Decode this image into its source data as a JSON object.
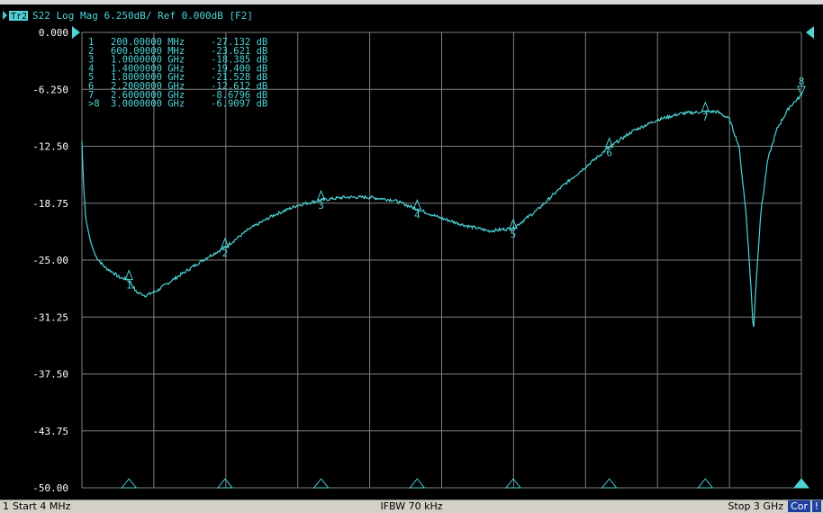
{
  "header": {
    "trace_id": "Tr2",
    "title_rest": "S22 Log Mag 6.250dB/ Ref 0.000dB [F2]"
  },
  "status": {
    "channel": "1",
    "start": "Start 4 MHz",
    "ifbw": "IFBW 70 kHz",
    "stop": "Stop 3 GHz",
    "cor": "Cor",
    "warn": "!"
  },
  "colors": {
    "trace": "#4fd3d6",
    "grid": "#808080",
    "background": "#000000",
    "marker_text": "#4fd3d6",
    "header_badge": "#4fd3d6"
  },
  "marker_table": [
    {
      "idx": "1",
      "freq": "200.00000 MHz",
      "val": "-27.132 dB"
    },
    {
      "idx": "2",
      "freq": "600.00000 MHz",
      "val": "-23.621 dB"
    },
    {
      "idx": "3",
      "freq": "1.0000000 GHz",
      "val": "-18.385 dB"
    },
    {
      "idx": "4",
      "freq": "1.4000000 GHz",
      "val": "-19.400 dB"
    },
    {
      "idx": "5",
      "freq": "1.8000000 GHz",
      "val": "-21.528 dB"
    },
    {
      "idx": "6",
      "freq": "2.2000000 GHz",
      "val": "-12.612 dB"
    },
    {
      "idx": "7",
      "freq": "2.6000000 GHz",
      "val": "-8.6796 dB"
    },
    {
      "idx": ">8",
      "freq": "3.0000000 GHz",
      "val": "-6.9097 dB"
    }
  ],
  "chart_data": {
    "type": "line",
    "title": "S22 Log Mag 6.250dB/ Ref 0.000dB [F2]",
    "xlabel": "",
    "ylabel": "",
    "xlim": [
      4,
      3000
    ],
    "x_unit": "MHz",
    "ylim": [
      -50,
      0
    ],
    "y_ticks": [
      "0.000",
      "-6.250",
      "-12.50",
      "-18.75",
      "-25.00",
      "-31.25",
      "-37.50",
      "-43.75",
      "-50.00"
    ],
    "grid": true,
    "series": [
      {
        "x": [
          4,
          10,
          20,
          40,
          60,
          80,
          100,
          130,
          160,
          190,
          200,
          230,
          270,
          320,
          380,
          450,
          520,
          600,
          700,
          800,
          900,
          1000,
          1100,
          1200,
          1300,
          1400,
          1500,
          1600,
          1700,
          1800,
          1900,
          2000,
          2100,
          2200,
          2300,
          2400,
          2500,
          2600,
          2650,
          2700,
          2740,
          2770,
          2790,
          2800,
          2810,
          2830,
          2860,
          2900,
          2950,
          3000
        ],
        "y": [
          -12.0,
          -16.5,
          -20.5,
          -23.0,
          -24.5,
          -25.2,
          -25.8,
          -26.3,
          -26.9,
          -27.1,
          -27.13,
          -28.5,
          -28.9,
          -28.3,
          -27.2,
          -26.0,
          -24.8,
          -23.6,
          -21.6,
          -20.1,
          -19.0,
          -18.4,
          -18.1,
          -18.1,
          -18.4,
          -19.4,
          -20.4,
          -21.2,
          -21.8,
          -21.5,
          -19.5,
          -17.0,
          -14.8,
          -12.6,
          -10.8,
          -9.6,
          -8.9,
          -8.7,
          -8.7,
          -9.5,
          -12.5,
          -20.0,
          -28.0,
          -33.0,
          -28.0,
          -20.0,
          -14.0,
          -10.5,
          -8.2,
          -6.9
        ]
      }
    ],
    "markers": [
      {
        "label": "1",
        "x": 200,
        "y": -27.132
      },
      {
        "label": "2",
        "x": 600,
        "y": -23.621
      },
      {
        "label": "3",
        "x": 1000,
        "y": -18.385
      },
      {
        "label": "4",
        "x": 1400,
        "y": -19.4
      },
      {
        "label": "5",
        "x": 1800,
        "y": -21.528
      },
      {
        "label": "6",
        "x": 2200,
        "y": -12.612
      },
      {
        "label": "7",
        "x": 2600,
        "y": -8.6796
      },
      {
        "label": "8",
        "x": 3000,
        "y": -6.9097
      }
    ]
  }
}
